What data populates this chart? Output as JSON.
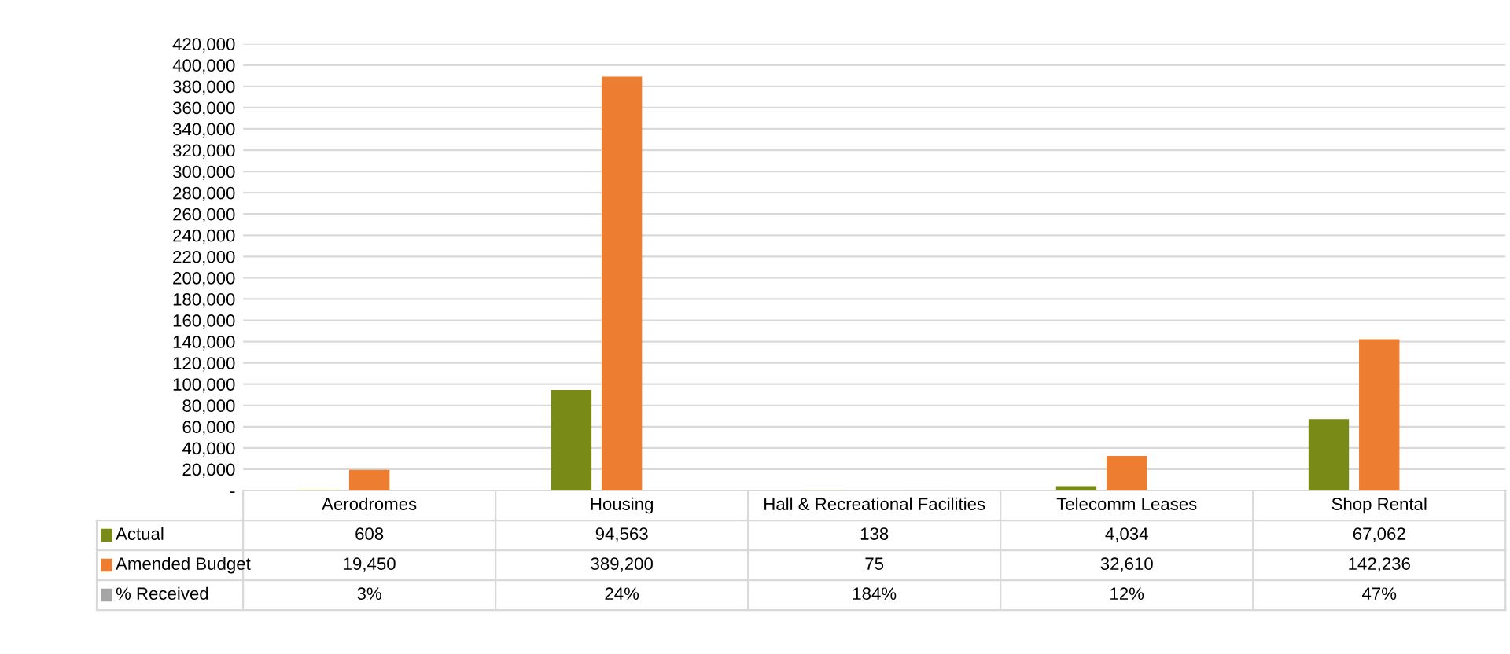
{
  "chart_data": {
    "type": "bar",
    "categories": [
      "Aerodromes",
      "Housing",
      "Hall & Recreational Facilities",
      "Telecomm Leases",
      "Shop Rental"
    ],
    "series": [
      {
        "name": "Actual",
        "color": "#7a8a17",
        "values": [
          608,
          94563,
          138,
          4034,
          67062
        ],
        "value_labels": [
          "608",
          "94,563",
          "138",
          "4,034",
          "67,062"
        ]
      },
      {
        "name": "Amended Budget",
        "color": "#ed7d31",
        "values": [
          19450,
          389200,
          75,
          32610,
          142236
        ],
        "value_labels": [
          "19,450",
          "389,200",
          "75",
          "32,610",
          "142,236"
        ]
      },
      {
        "name": "% Received",
        "color": "#a5a5a5",
        "values": [
          3,
          24,
          184,
          12,
          47
        ],
        "value_labels": [
          "3%",
          "24%",
          "184%",
          "12%",
          "47%"
        ]
      }
    ],
    "ylim": [
      0,
      420000
    ],
    "yticks": [
      {
        "value": 0,
        "label": "-"
      },
      {
        "value": 20000,
        "label": "20,000"
      },
      {
        "value": 40000,
        "label": "40,000"
      },
      {
        "value": 60000,
        "label": "60,000"
      },
      {
        "value": 80000,
        "label": "80,000"
      },
      {
        "value": 100000,
        "label": "100,000"
      },
      {
        "value": 120000,
        "label": "120,000"
      },
      {
        "value": 140000,
        "label": "140,000"
      },
      {
        "value": 160000,
        "label": "160,000"
      },
      {
        "value": 180000,
        "label": "180,000"
      },
      {
        "value": 200000,
        "label": "200,000"
      },
      {
        "value": 220000,
        "label": "220,000"
      },
      {
        "value": 240000,
        "label": "240,000"
      },
      {
        "value": 260000,
        "label": "260,000"
      },
      {
        "value": 280000,
        "label": "280,000"
      },
      {
        "value": 300000,
        "label": "300,000"
      },
      {
        "value": 320000,
        "label": "320,000"
      },
      {
        "value": 340000,
        "label": "340,000"
      },
      {
        "value": 360000,
        "label": "360,000"
      },
      {
        "value": 380000,
        "label": "380,000"
      },
      {
        "value": 400000,
        "label": "400,000"
      },
      {
        "value": 420000,
        "label": "420,000"
      }
    ],
    "grid": "y",
    "legend": "bottom"
  }
}
